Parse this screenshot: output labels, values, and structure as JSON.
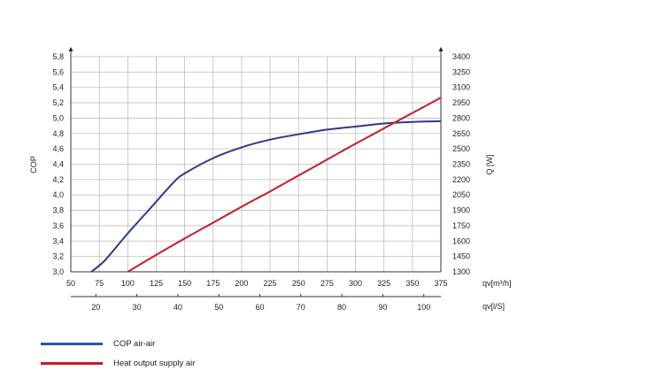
{
  "chart_data": {
    "type": "line",
    "title": "",
    "grid": true,
    "x_primary": {
      "label": "qv[m³/h]",
      "min": 50,
      "max": 375,
      "ticks": [
        "50",
        "75",
        "100",
        "125",
        "150",
        "175",
        "200",
        "225",
        "250",
        "275",
        "300",
        "325",
        "350",
        "375"
      ]
    },
    "x_secondary": {
      "label": "qv[l/S]",
      "ticks": [
        "20",
        "30",
        "40",
        "50",
        "60",
        "70",
        "80",
        "90",
        "100"
      ],
      "tick_values_m3h": [
        72,
        108,
        144,
        180,
        216,
        252,
        288,
        324,
        360
      ]
    },
    "y_left": {
      "label": "COP",
      "min": 3.0,
      "max": 5.8,
      "ticks": [
        "3,0",
        "3,2",
        "3,4",
        "3,6",
        "3,8",
        "4,0",
        "4,2",
        "4,4",
        "4,6",
        "4,8",
        "5,0",
        "5,2",
        "5,4",
        "5,6",
        "5,8"
      ]
    },
    "y_right": {
      "label": "Q [W]",
      "min": 1300,
      "max": 3400,
      "ticks": [
        "1300",
        "1450",
        "1600",
        "1750",
        "1900",
        "2050",
        "2200",
        "2350",
        "2500",
        "2650",
        "2800",
        "2950",
        "3100",
        "3250",
        "3400"
      ]
    },
    "series": [
      {
        "name": "COP air-air",
        "axis": "left",
        "color": "#2b3a8c",
        "x": [
          68,
          80,
          100,
          120,
          140,
          150,
          175,
          200,
          225,
          250,
          275,
          300,
          325,
          350,
          375
        ],
        "y": [
          3.0,
          3.15,
          3.5,
          3.83,
          4.16,
          4.28,
          4.48,
          4.62,
          4.72,
          4.79,
          4.85,
          4.89,
          4.93,
          4.95,
          4.96
        ]
      },
      {
        "name": "Heat output supply air",
        "axis": "right",
        "color": "#c41e24",
        "x": [
          100,
          125,
          150,
          175,
          200,
          225,
          250,
          275,
          300,
          325,
          350,
          375
        ],
        "y": [
          1300,
          1465,
          1625,
          1780,
          1935,
          2085,
          2240,
          2395,
          2550,
          2700,
          2850,
          3000
        ]
      }
    ]
  }
}
